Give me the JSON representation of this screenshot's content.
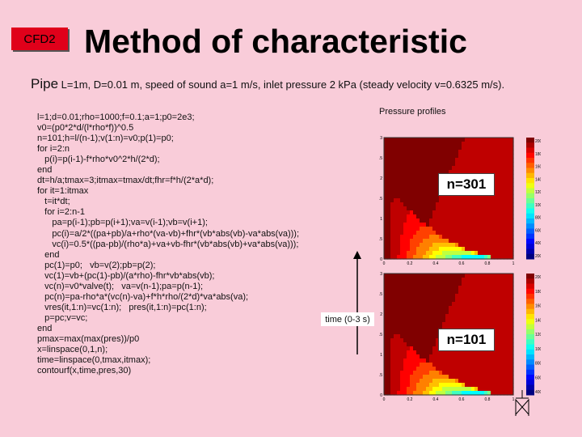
{
  "badge": "CFD2",
  "title": "Method of characteristic",
  "subtitle": {
    "lead": "Pipe",
    "text": " L=1m, D=0.01 m, speed of sound a=1 m/s, inlet pressure 2 kPa (steady velocity v=0.6325 m/s)."
  },
  "code_lines": [
    "l=1;d=0.01;rho=1000;f=0.1;a=1;p0=2e3;",
    "v0=(p0*2*d/(l*rho*f))^0.5",
    "n=101;h=l/(n-1);v(1:n)=v0;p(1)=p0;",
    "for i=2:n",
    "   p(i)=p(i-1)-f*rho*v0^2*h/(2*d);",
    "end",
    "dt=h/a;tmax=3;itmax=tmax/dt;fhr=f*h/(2*a*d);",
    "for it=1:itmax",
    "   t=it*dt;",
    "   for i=2:n-1",
    "      pa=p(i-1);pb=p(i+1);va=v(i-1);vb=v(i+1);",
    "      pc(i)=a/2*((pa+pb)/a+rho*(va-vb)+fhr*(vb*abs(vb)-va*abs(va)));",
    "      vc(i)=0.5*((pa-pb)/(rho*a)+va+vb-fhr*(vb*abs(vb)+va*abs(va)));",
    "   end",
    "   pc(1)=p0;   vb=v(2);pb=p(2);",
    "   vc(1)=vb+(pc(1)-pb)/(a*rho)-fhr*vb*abs(vb);",
    "   vc(n)=v0*valve(t);   va=v(n-1);pa=p(n-1);",
    "   pc(n)=pa-rho*a*(vc(n)-va)+f*h*rho/(2*d)*va*abs(va);",
    "   vres(it,1:n)=vc(1:n);   pres(it,1:n)=pc(1:n);",
    "   p=pc;v=vc;",
    "end",
    "pmax=max(max(pres))/p0",
    "x=linspace(0,1,n);",
    "time=linspace(0,tmax,itmax);",
    "contourf(x,time,pres,30)"
  ],
  "plots": {
    "caption": "Pressure profiles",
    "time_label": "time (0-3 s)",
    "top": {
      "label": "n=301",
      "y_ticks": [
        "3",
        "2.5",
        "2",
        "1.5",
        "1",
        "0.5",
        "0"
      ],
      "x_ticks": [
        "0",
        "0.2",
        "0.4",
        "0.6",
        "0.8",
        "1"
      ],
      "colorbar_ticks": [
        "2000",
        "1800",
        "1600",
        "1400",
        "1200",
        "1000",
        "800",
        "600",
        "400",
        "200"
      ]
    },
    "bottom": {
      "label": "n=101",
      "y_ticks": [
        "3",
        "2.5",
        "2",
        "1.5",
        "1",
        "0.5",
        "0"
      ],
      "x_ticks": [
        "0",
        "0.2",
        "0.4",
        "0.6",
        "0.8",
        "1"
      ],
      "colorbar_ticks": [
        "2000",
        "1800",
        "1600",
        "1400",
        "1200",
        "1000",
        "800",
        "600",
        "400"
      ]
    }
  },
  "colors": {
    "background": "#f9ccd9",
    "badge": "#e0001a",
    "high_pressure": "#b00000",
    "low_pressure": "#1020ff"
  }
}
